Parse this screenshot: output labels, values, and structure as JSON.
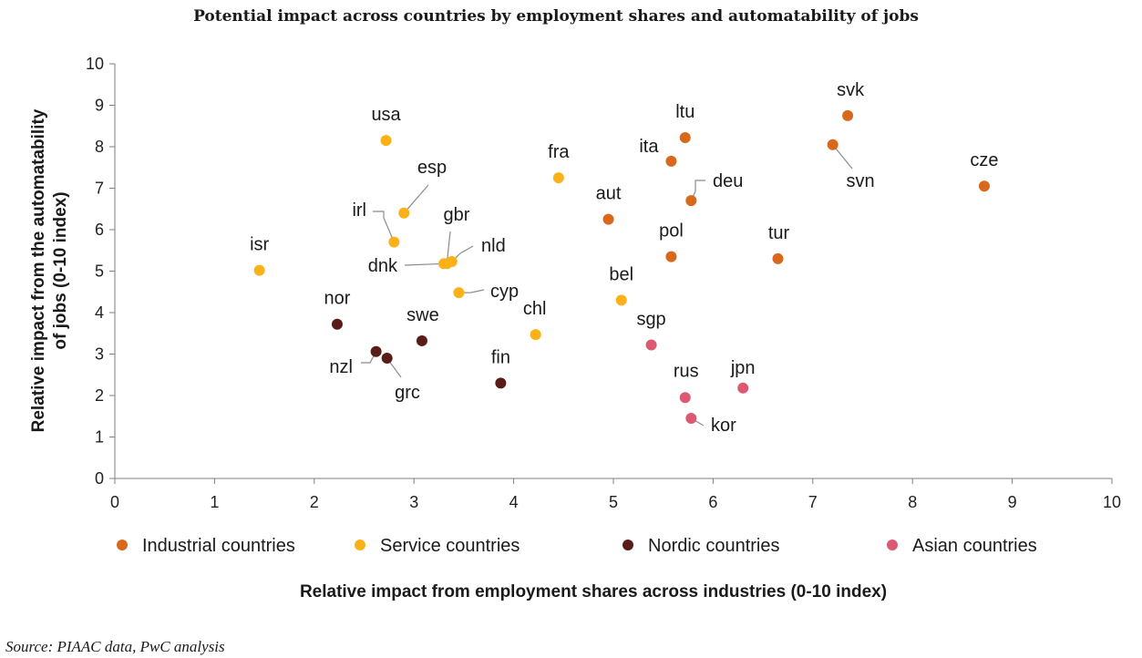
{
  "title": "Potential impact across countries by employment shares and automatability of jobs",
  "source": "Source: PIAAC data, PwC analysis",
  "colors": {
    "industrial": "#D8681C",
    "service": "#FBB117",
    "nordic": "#5A1C17",
    "asian": "#DB5A72",
    "axis": "#7f7f7f",
    "leader": "#8c8c8c"
  },
  "chart_data": {
    "type": "scatter",
    "title": "Potential impact across countries by employment shares and automatability of jobs",
    "xlabel": "Relative impact from employment shares across industries (0-10 index)",
    "ylabel": "Relative impact from the automatability of jobs (0-10 index)",
    "xlim": [
      0,
      10
    ],
    "ylim": [
      0,
      10
    ],
    "xticks": [
      0,
      1,
      2,
      3,
      4,
      5,
      6,
      7,
      8,
      9,
      10
    ],
    "yticks": [
      0,
      1,
      2,
      3,
      4,
      5,
      6,
      7,
      8,
      9,
      10
    ],
    "grid": false,
    "legend_position": "bottom",
    "series": [
      {
        "name": "Industrial countries",
        "color": "#D8681C",
        "points": [
          {
            "label": "svk",
            "x": 7.35,
            "y": 8.75
          },
          {
            "label": "svn",
            "x": 7.2,
            "y": 8.05
          },
          {
            "label": "cze",
            "x": 8.72,
            "y": 7.05
          },
          {
            "label": "ltu",
            "x": 5.72,
            "y": 8.22
          },
          {
            "label": "ita",
            "x": 5.58,
            "y": 7.65
          },
          {
            "label": "deu",
            "x": 5.78,
            "y": 6.7
          },
          {
            "label": "aut",
            "x": 4.95,
            "y": 6.25
          },
          {
            "label": "pol",
            "x": 5.58,
            "y": 5.35
          },
          {
            "label": "tur",
            "x": 6.65,
            "y": 5.3
          }
        ]
      },
      {
        "name": "Service countries",
        "color": "#FBB117",
        "points": [
          {
            "label": "usa",
            "x": 2.72,
            "y": 8.15
          },
          {
            "label": "fra",
            "x": 4.45,
            "y": 7.25
          },
          {
            "label": "esp",
            "x": 2.9,
            "y": 6.4
          },
          {
            "label": "irl",
            "x": 2.8,
            "y": 5.7
          },
          {
            "label": "gbr",
            "x": 3.33,
            "y": 5.18
          },
          {
            "label": "nld",
            "x": 3.38,
            "y": 5.23
          },
          {
            "label": "dnk",
            "x": 3.3,
            "y": 5.18
          },
          {
            "label": "isr",
            "x": 1.45,
            "y": 5.02
          },
          {
            "label": "cyp",
            "x": 3.45,
            "y": 4.48
          },
          {
            "label": "bel",
            "x": 5.08,
            "y": 4.3
          },
          {
            "label": "chl",
            "x": 4.22,
            "y": 3.47
          }
        ]
      },
      {
        "name": "Nordic countries",
        "color": "#5A1C17",
        "points": [
          {
            "label": "nor",
            "x": 2.23,
            "y": 3.72
          },
          {
            "label": "swe",
            "x": 3.08,
            "y": 3.32
          },
          {
            "label": "nzl",
            "x": 2.62,
            "y": 3.06
          },
          {
            "label": "grc",
            "x": 2.73,
            "y": 2.9
          },
          {
            "label": "fin",
            "x": 3.87,
            "y": 2.3
          }
        ]
      },
      {
        "name": "Asian countries",
        "color": "#DB5A72",
        "points": [
          {
            "label": "sgp",
            "x": 5.38,
            "y": 3.22
          },
          {
            "label": "jpn",
            "x": 6.3,
            "y": 2.18
          },
          {
            "label": "rus",
            "x": 5.72,
            "y": 1.95
          },
          {
            "label": "kor",
            "x": 5.78,
            "y": 1.45
          }
        ]
      }
    ]
  }
}
